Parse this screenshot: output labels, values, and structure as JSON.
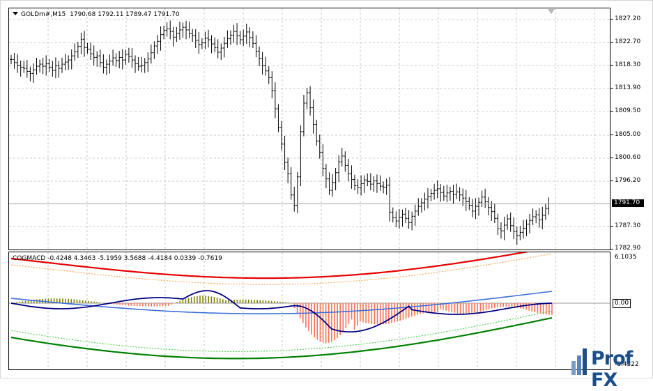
{
  "chart": {
    "symbol_label": "GOLDm#,M15",
    "ohlc": "1790.68 1792.11 1789.47 1791.70",
    "price_tag": "1791.70",
    "price_axis": [
      "1827.20",
      "1822.70",
      "1818.30",
      "1813.90",
      "1809.50",
      "1805.00",
      "1800.60",
      "1796.20",
      "1787.30",
      "1782.90"
    ]
  },
  "indicator": {
    "name": "COGMACD",
    "values": "-0.4248 4.3463 -5.1959 3.5688 -4.4184 0.0339 -0.7619",
    "axis_top": "6.1035",
    "axis_zero": "0.00",
    "axis_bottom": "-8.4322"
  },
  "logo": {
    "text": "Prof FX"
  },
  "colors": {
    "upper_band": "#e60000",
    "upper_band_dashed": "#ff9933",
    "lower_band": "#008000",
    "lower_band_dashed": "#33cc33",
    "hist_negative": "#ff6f52",
    "hist_positive": "#808000",
    "macd_line": "#000080",
    "signal_line": "#3a6fd8",
    "grid": "#c8c8c8"
  },
  "chart_data": {
    "type": "line",
    "title": "GOLDm#,M15",
    "bars_close": [
      1819.5,
      1818.9,
      1818.4,
      1818.0,
      1817.8,
      1817.2,
      1816.8,
      1817.5,
      1818.2,
      1818.6,
      1818.2,
      1818.7,
      1818.0,
      1817.4,
      1818.3,
      1817.8,
      1818.6,
      1819.0,
      1819.4,
      1820.2,
      1821.0,
      1822.0,
      1823.4,
      1821.8,
      1821.5,
      1820.6,
      1819.9,
      1820.2,
      1818.9,
      1818.0,
      1818.6,
      1819.2,
      1819.8,
      1819.3,
      1819.9,
      1819.4,
      1820.5,
      1820.1,
      1819.4,
      1818.7,
      1818.2,
      1818.4,
      1818.9,
      1819.6,
      1820.8,
      1822.1,
      1823.0,
      1824.3,
      1825.1,
      1825.4,
      1824.9,
      1823.8,
      1824.5,
      1825.2,
      1825.7,
      1825.2,
      1824.5,
      1824.1,
      1823.2,
      1822.4,
      1822.7,
      1823.6,
      1823.3,
      1822.5,
      1821.8,
      1820.9,
      1821.7,
      1822.6,
      1823.5,
      1824.2,
      1824.9,
      1824.1,
      1823.3,
      1824.0,
      1824.8,
      1823.7,
      1822.6,
      1821.1,
      1819.7,
      1818.4,
      1817.3,
      1816.0,
      1813.5,
      1810.0,
      1806.4,
      1803.2,
      1799.7,
      1797.5,
      1793.4,
      1791.4,
      1796.9,
      1805.6,
      1811.1,
      1813.1,
      1810.2,
      1807.0,
      1803.8,
      1801.6,
      1798.5,
      1796.5,
      1794.3,
      1795.8,
      1797.7,
      1799.8,
      1800.9,
      1799.1,
      1797.5,
      1796.4,
      1795.2,
      1794.8,
      1795.6,
      1796.3,
      1796.0,
      1795.5,
      1796.1,
      1795.6,
      1795.1,
      1794.9,
      1795.3,
      1790.1,
      1789.0,
      1788.4,
      1789.1,
      1789.7,
      1788.9,
      1788.1,
      1789.3,
      1790.3,
      1791.2,
      1791.9,
      1792.6,
      1793.1,
      1793.7,
      1794.3,
      1794.6,
      1793.9,
      1793.2,
      1793.8,
      1794.1,
      1793.5,
      1794.0,
      1793.4,
      1792.8,
      1792.1,
      1791.4,
      1790.3,
      1791.2,
      1792.0,
      1793.0,
      1792.1,
      1791.0,
      1790.2,
      1788.9,
      1786.9,
      1786.5,
      1787.6,
      1788.8,
      1787.5,
      1786.4,
      1785.6,
      1786.2,
      1787.0,
      1787.8,
      1788.5,
      1789.2,
      1789.6,
      1788.6,
      1789.5,
      1790.8,
      1791.7
    ],
    "ylim": [
      1781.0,
      1830.0
    ]
  }
}
